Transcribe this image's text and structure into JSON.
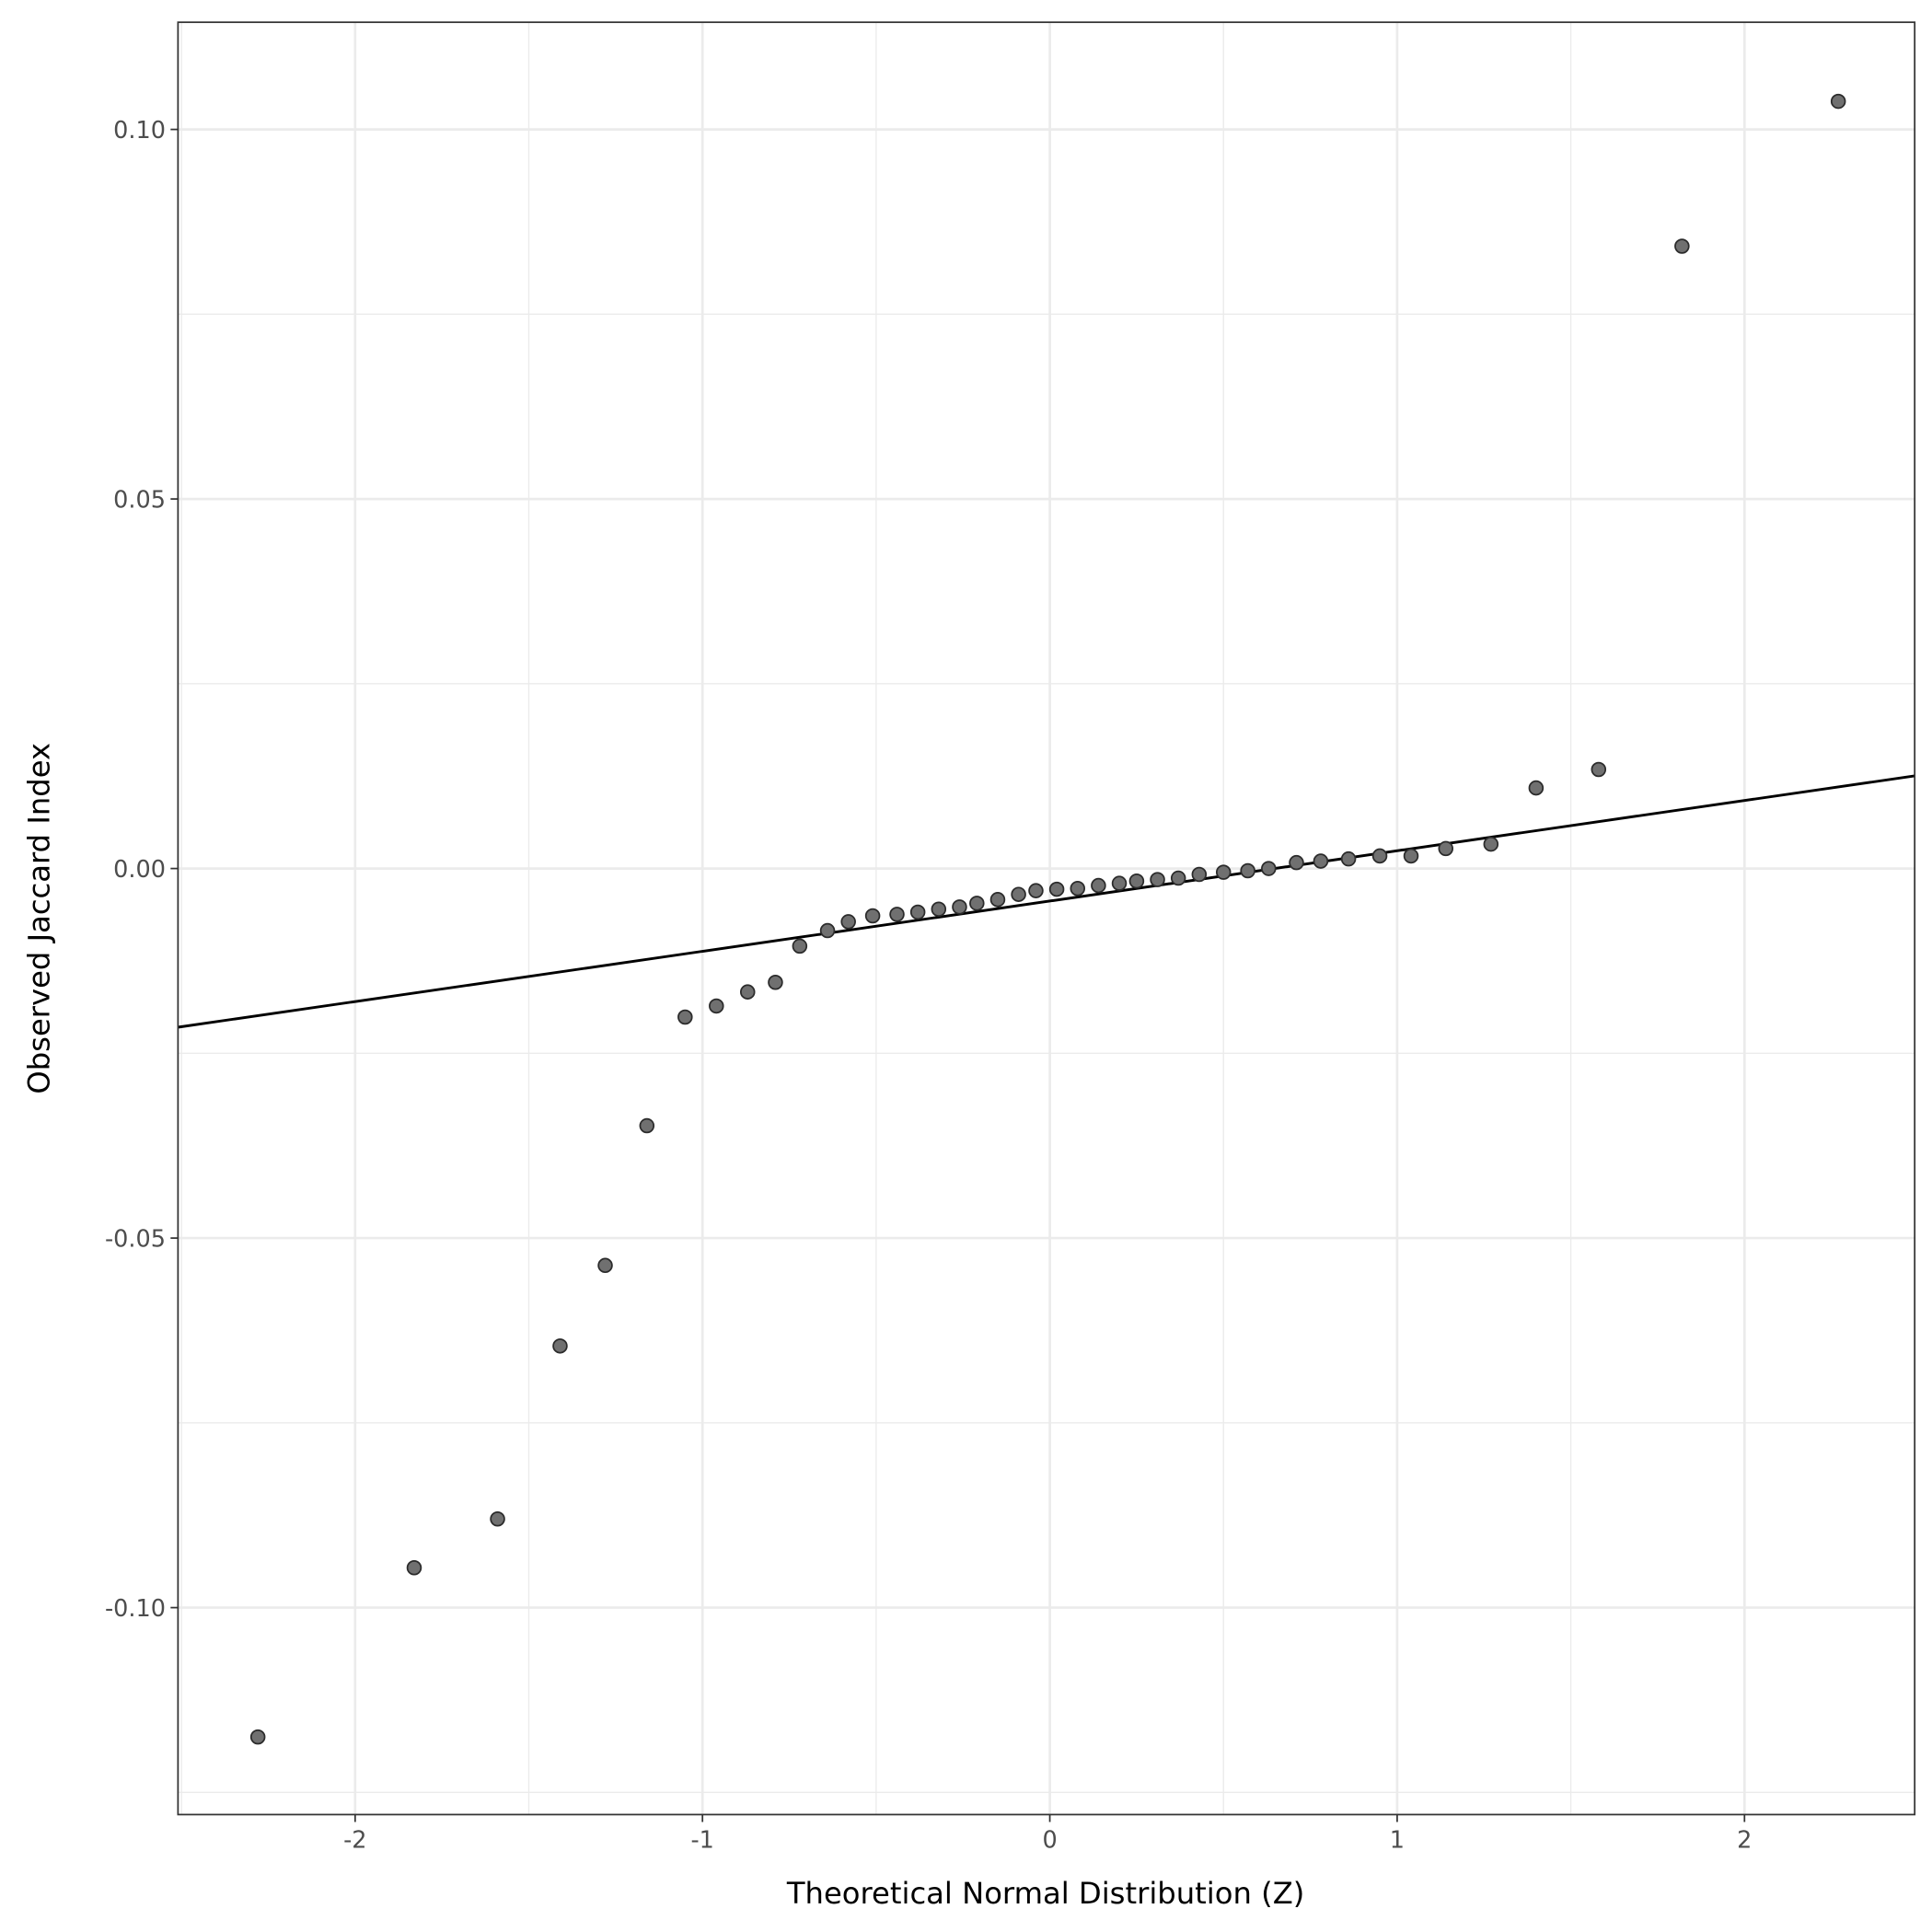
{
  "chart_data": {
    "type": "scatter",
    "title": "",
    "xlabel": "Theoretical Normal Distribution (Z)",
    "ylabel": "Observed Jaccard Index",
    "xlim": [
      -2.51,
      2.49
    ],
    "ylim": [
      -0.128,
      0.1145
    ],
    "grid": true,
    "x_ticks": [
      -2,
      -1,
      0,
      1,
      2
    ],
    "x_tick_labels": [
      "-2",
      "-1",
      "0",
      "1",
      "2"
    ],
    "y_ticks": [
      -0.1,
      -0.05,
      0.0,
      0.05,
      0.1
    ],
    "y_tick_labels": [
      "-0.10",
      "-0.05",
      "0.00",
      "0.05",
      "0.10"
    ],
    "x_minor": [
      -2.5,
      -1.5,
      -0.5,
      0.5,
      1.5
    ],
    "y_minor": [
      -0.125,
      -0.075,
      -0.025,
      0.025,
      0.075
    ],
    "points": {
      "x": [
        -2.28,
        -1.83,
        -1.59,
        -1.41,
        -1.28,
        -1.16,
        -1.05,
        -0.96,
        -0.87,
        -0.79,
        -0.72,
        -0.64,
        -0.58,
        -0.51,
        -0.44,
        -0.38,
        -0.32,
        -0.26,
        -0.21,
        -0.15,
        -0.09,
        -0.04,
        0.02,
        0.08,
        0.14,
        0.2,
        0.25,
        0.31,
        0.37,
        0.43,
        0.5,
        0.57,
        0.63,
        0.71,
        0.78,
        0.86,
        0.95,
        1.04,
        1.14,
        1.27,
        1.4,
        1.58,
        1.82,
        2.27
      ],
      "y": [
        -0.1175,
        -0.0946,
        -0.088,
        -0.0646,
        -0.0537,
        -0.0348,
        -0.0201,
        -0.0186,
        -0.0167,
        -0.0154,
        -0.0105,
        -0.0084,
        -0.0072,
        -0.0064,
        -0.0062,
        -0.0059,
        -0.0055,
        -0.0052,
        -0.0047,
        -0.0042,
        -0.0035,
        -0.003,
        -0.0028,
        -0.0027,
        -0.0023,
        -0.002,
        -0.0017,
        -0.0015,
        -0.0013,
        -0.0008,
        -0.0005,
        -0.0003,
        0.0,
        0.0008,
        0.001,
        0.0013,
        0.0017,
        0.0017,
        0.0027,
        0.0033,
        0.0109,
        0.0134,
        0.0842,
        0.1038
      ]
    },
    "reference_line": {
      "slope": 0.0068,
      "intercept": -0.0044
    },
    "colors": {
      "point_fill": "#707070",
      "point_stroke": "#2b2b2b",
      "line": "#000000",
      "grid": "#ebebeb"
    }
  }
}
